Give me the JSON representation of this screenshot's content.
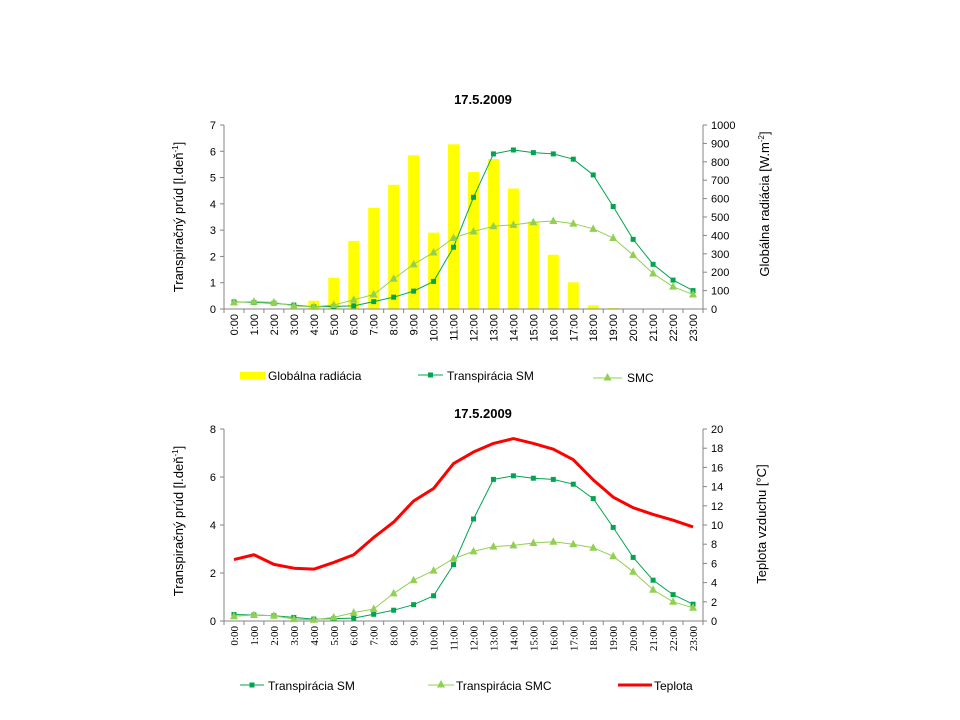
{
  "chart_data": [
    {
      "type": "bar+line",
      "title": "17.5.2009",
      "ylabel": "Transpiračný prúd [l.deň-1]",
      "ylabel_main": "Transpiračný prúd [l.deň",
      "ylabel_sup": "-1",
      "ylabel_end": "]",
      "y2label": "Globálna radiácia [W.m-2]",
      "y2label_main": "Globálna radiácia [W.m",
      "y2label_sup": "-2",
      "y2label_end": "]",
      "ylim": [
        0,
        7
      ],
      "y2lim": [
        0,
        1000
      ],
      "yticks": [
        "0",
        "1",
        "2",
        "3",
        "4",
        "5",
        "6",
        "7"
      ],
      "y2ticks": [
        "0",
        "100",
        "200",
        "300",
        "400",
        "500",
        "600",
        "700",
        "800",
        "900",
        "1000"
      ],
      "categories": [
        "0:00",
        "1:00",
        "2:00",
        "3:00",
        "4:00",
        "5:00",
        "6:00",
        "7:00",
        "8:00",
        "9:00",
        "10:00",
        "11:00",
        "12:00",
        "13:00",
        "14:00",
        "15:00",
        "16:00",
        "17:00",
        "18:00",
        "19:00",
        "20:00",
        "21:00",
        "22:00",
        "23:00"
      ],
      "series": [
        {
          "name": "Globálna radiácia",
          "axis": "secondary",
          "type": "bar",
          "color": "#ffff00",
          "values": [
            0,
            0,
            0,
            0,
            45,
            170,
            370,
            550,
            675,
            835,
            415,
            895,
            745,
            815,
            655,
            475,
            295,
            145,
            20,
            5,
            0,
            0,
            0,
            0
          ]
        },
        {
          "name": "Transpirácia SM",
          "axis": "primary",
          "type": "line",
          "color": "#00a550",
          "values": [
            0.27,
            0.25,
            0.22,
            0.15,
            0.08,
            0.1,
            0.12,
            0.28,
            0.45,
            0.68,
            1.05,
            2.35,
            4.25,
            5.9,
            6.05,
            5.95,
            5.9,
            5.7,
            5.1,
            3.9,
            2.65,
            1.7,
            1.1,
            0.7
          ]
        },
        {
          "name": "SMC",
          "axis": "primary",
          "type": "line",
          "color": "#92d050",
          "values": [
            0.25,
            0.28,
            0.25,
            0.12,
            0.08,
            0.15,
            0.35,
            0.55,
            1.15,
            1.7,
            2.15,
            2.7,
            2.95,
            3.15,
            3.2,
            3.3,
            3.35,
            3.25,
            3.05,
            2.7,
            2.05,
            1.35,
            0.85,
            0.55
          ]
        }
      ],
      "legend": [
        "Globálna radiácia",
        "Transpirácia SM",
        "SMC"
      ]
    },
    {
      "type": "line",
      "title": "17.5.2009",
      "ylabel": "Transpiračný prúd [l.deň-1]",
      "ylabel_main": "Transpiračný prúd [l.deň",
      "ylabel_sup": "-1",
      "ylabel_end": "]",
      "y2label": "Teplota vzduchu [°C]",
      "ylim": [
        0,
        8
      ],
      "y2lim": [
        0,
        20
      ],
      "yticks": [
        "0",
        "2",
        "4",
        "6",
        "8"
      ],
      "y2ticks": [
        "0",
        "2",
        "4",
        "6",
        "8",
        "10",
        "12",
        "14",
        "16",
        "18",
        "20"
      ],
      "categories": [
        "0:00",
        "1:00",
        "2:00",
        "3:00",
        "4:00",
        "5:00",
        "6:00",
        "7:00",
        "8:00",
        "9:00",
        "10:00",
        "11:00",
        "12:00",
        "13:00",
        "14:00",
        "15:00",
        "16:00",
        "17:00",
        "18:00",
        "19:00",
        "20:00",
        "21:00",
        "22:00",
        "23:00"
      ],
      "series": [
        {
          "name": "Transpirácia SM",
          "axis": "primary",
          "type": "line",
          "color": "#00a550",
          "values": [
            0.27,
            0.25,
            0.22,
            0.15,
            0.08,
            0.1,
            0.12,
            0.28,
            0.45,
            0.68,
            1.05,
            2.35,
            4.25,
            5.9,
            6.05,
            5.95,
            5.9,
            5.7,
            5.1,
            3.9,
            2.65,
            1.7,
            1.1,
            0.7
          ]
        },
        {
          "name": "Transpirácia SMC",
          "axis": "primary",
          "type": "line",
          "color": "#92d050",
          "values": [
            0.2,
            0.25,
            0.22,
            0.08,
            0.05,
            0.15,
            0.35,
            0.5,
            1.15,
            1.7,
            2.1,
            2.6,
            2.9,
            3.1,
            3.15,
            3.25,
            3.3,
            3.2,
            3.05,
            2.7,
            2.05,
            1.3,
            0.8,
            0.55
          ]
        },
        {
          "name": "Teplota",
          "axis": "secondary",
          "type": "line",
          "color": "#ff0000",
          "values": [
            6.4,
            6.9,
            5.9,
            5.5,
            5.4,
            6.1,
            6.9,
            8.7,
            10.3,
            12.5,
            13.8,
            16.4,
            17.6,
            18.5,
            19.0,
            18.5,
            17.9,
            16.8,
            14.7,
            12.9,
            11.8,
            11.1,
            10.5,
            9.8
          ]
        }
      ],
      "legend": [
        "Transpirácia SM",
        "Transpirácia SMC",
        "Teplota"
      ]
    }
  ]
}
